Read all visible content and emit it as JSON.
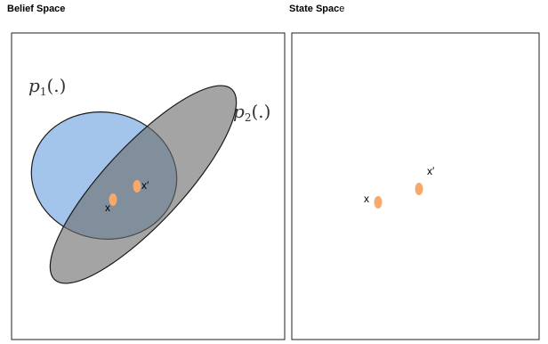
{
  "panels": {
    "belief": {
      "title": "Belief Space",
      "dist1_label": "p",
      "dist1_sub": "1",
      "dist1_args": "(.)",
      "dist2_label": "p",
      "dist2_sub": "2",
      "dist2_args": "(.)",
      "point_x_label": "x",
      "point_xp_label": "x′"
    },
    "state": {
      "title_bold": "State Spac",
      "title_tail": "e",
      "point_x_label": "x",
      "point_xp_label": "x′"
    }
  },
  "colors": {
    "ellipse_blue": "#9ec1ea",
    "ellipse_gray": "#6c6c6c",
    "point": "#f6a96b",
    "frame": "#222222"
  }
}
